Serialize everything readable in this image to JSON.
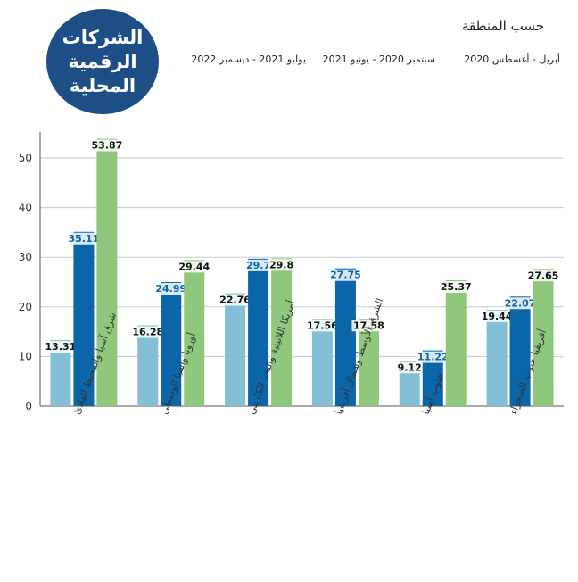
{
  "badge": {
    "title": "الشركات\nالرقمية\nالمحلية"
  },
  "subtitle": "حسب المنطقة",
  "colors": {
    "series": [
      "#84bfd5",
      "#0a66a8",
      "#8fc87c"
    ],
    "grid": "#c9c9c9",
    "axis": "#555555",
    "badge_bg": "#1d4f86"
  },
  "chart_data": {
    "type": "bar",
    "title": "",
    "xlabel": "",
    "ylabel": "",
    "ylim": [
      0,
      55
    ],
    "yticks": [
      0,
      10,
      20,
      30,
      40,
      50
    ],
    "grid": true,
    "legend_position": "top",
    "categories": [
      "شرق آسيا والمحيط الهادئ",
      "أوروبا وآسيا الوسطى",
      "أمريكا اللاتينية والبحر الكاريبي",
      "الشرق الأوسط وشمال أفريقيا",
      "جنوب آسيا",
      "أفريقيا جنوب الصحراء"
    ],
    "series": [
      {
        "name": "أبريل - أغسطس 2020",
        "values": [
          13.31,
          16.28,
          22.76,
          17.56,
          9.12,
          19.44
        ]
      },
      {
        "name": "سبتمبر 2020 - يونيو 2021",
        "values": [
          35.11,
          24.99,
          29.7,
          27.75,
          11.22,
          22.07
        ]
      },
      {
        "name": "يوليو 2021 - ديسمبر 2022",
        "values": [
          53.87,
          29.44,
          29.8,
          17.58,
          25.37,
          27.65
        ]
      }
    ],
    "data_labels": [
      [
        "13.31",
        "16.28",
        "22.76",
        "17.56",
        "9.12",
        "19.44"
      ],
      [
        "35.11",
        "24.99",
        "29.7",
        "27.75",
        "11.22",
        "22.07"
      ],
      [
        "53.87",
        "29.44",
        "29.8",
        "17.58",
        "25.37",
        "27.65"
      ]
    ]
  }
}
